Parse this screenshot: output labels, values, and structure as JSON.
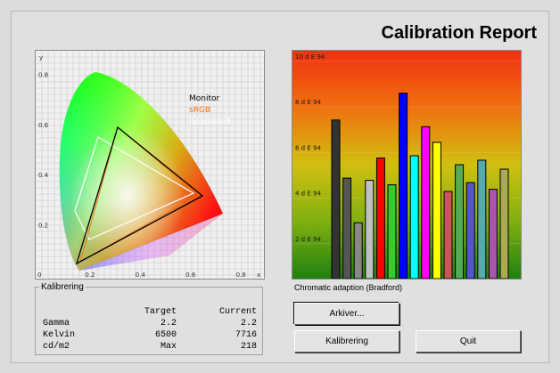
{
  "title": "Calibration Report",
  "cie": {
    "axis_x_label": "x",
    "axis_y_label": "y",
    "x_ticks": [
      "0",
      "0.2",
      "0.4",
      "0.6",
      "0.8"
    ],
    "y_ticks": [
      "0.8",
      "0.6",
      "0.4",
      "0.2"
    ],
    "legend": [
      {
        "name": "Monitor",
        "color": "#000000"
      },
      {
        "name": "sRGB",
        "color": "#f07010"
      },
      {
        "name": "ISOcoated",
        "color": "#ffffff"
      }
    ]
  },
  "chart_data": {
    "type": "bar",
    "ylim": [
      0,
      10
    ],
    "y_ticks": [
      "10 d E 94",
      "8 d E 94",
      "6 d E 94",
      "4 d E 94",
      "2 d E 94"
    ],
    "values": [
      7.1,
      4.5,
      2.5,
      4.4,
      5.4,
      4.2,
      8.3,
      5.5,
      6.8,
      6.1,
      3.9,
      5.1,
      4.3,
      5.3,
      4.0,
      4.9
    ],
    "colors": [
      "#333333",
      "#555555",
      "#888888",
      "#c0c0c0",
      "#ff0000",
      "#33cc33",
      "#0000ff",
      "#00ffff",
      "#ff00ff",
      "#ffff00",
      "#cc5555",
      "#55aa55",
      "#5555cc",
      "#55aaaa",
      "#aa55aa",
      "#aaaa55"
    ]
  },
  "caption": "Chromatic adaption (Bradford)",
  "kalibrering": {
    "legend": "Kalibrering",
    "headers": [
      "",
      "Target",
      "Current"
    ],
    "rows": [
      {
        "label": "Gamma",
        "target": "2.2",
        "current": "2.2"
      },
      {
        "label": "Kelvin",
        "target": "6500",
        "current": "7716"
      },
      {
        "label": "cd/m2",
        "target": "Max",
        "current": "218"
      }
    ]
  },
  "buttons": {
    "arkiver": "Arkiver...",
    "kalibrering": "Kalibrering",
    "quit": "Quit"
  }
}
